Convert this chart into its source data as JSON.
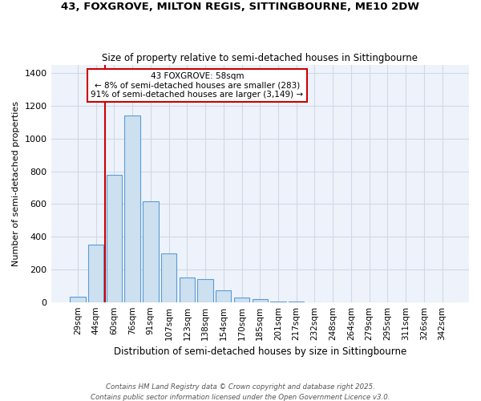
{
  "title1": "43, FOXGROVE, MILTON REGIS, SITTINGBOURNE, ME10 2DW",
  "title2": "Size of property relative to semi-detached houses in Sittingbourne",
  "xlabel": "Distribution of semi-detached houses by size in Sittingbourne",
  "ylabel": "Number of semi-detached properties",
  "categories": [
    "29sqm",
    "44sqm",
    "60sqm",
    "76sqm",
    "91sqm",
    "107sqm",
    "123sqm",
    "138sqm",
    "154sqm",
    "170sqm",
    "185sqm",
    "201sqm",
    "217sqm",
    "232sqm",
    "248sqm",
    "264sqm",
    "279sqm",
    "295sqm",
    "311sqm",
    "326sqm",
    "342sqm"
  ],
  "values": [
    35,
    350,
    780,
    1140,
    615,
    300,
    150,
    140,
    70,
    30,
    20,
    5,
    2,
    0,
    0,
    0,
    0,
    0,
    0,
    0,
    0
  ],
  "bar_color": "#cce0f0",
  "bar_edge_color": "#5b9bd5",
  "grid_color": "#d0d8e8",
  "bg_color": "#eef3fb",
  "marker_label": "43 FOXGROVE: 58sqm",
  "marker_line_color": "#cc0000",
  "annotation_smaller": "← 8% of semi-detached houses are smaller (283)",
  "annotation_larger": "91% of semi-detached houses are larger (3,149) →",
  "annotation_box_color": "#cc0000",
  "footer1": "Contains HM Land Registry data © Crown copyright and database right 2025.",
  "footer2": "Contains public sector information licensed under the Open Government Licence v3.0.",
  "ylim": [
    0,
    1450
  ],
  "yticks": [
    0,
    200,
    400,
    600,
    800,
    1000,
    1200,
    1400
  ]
}
